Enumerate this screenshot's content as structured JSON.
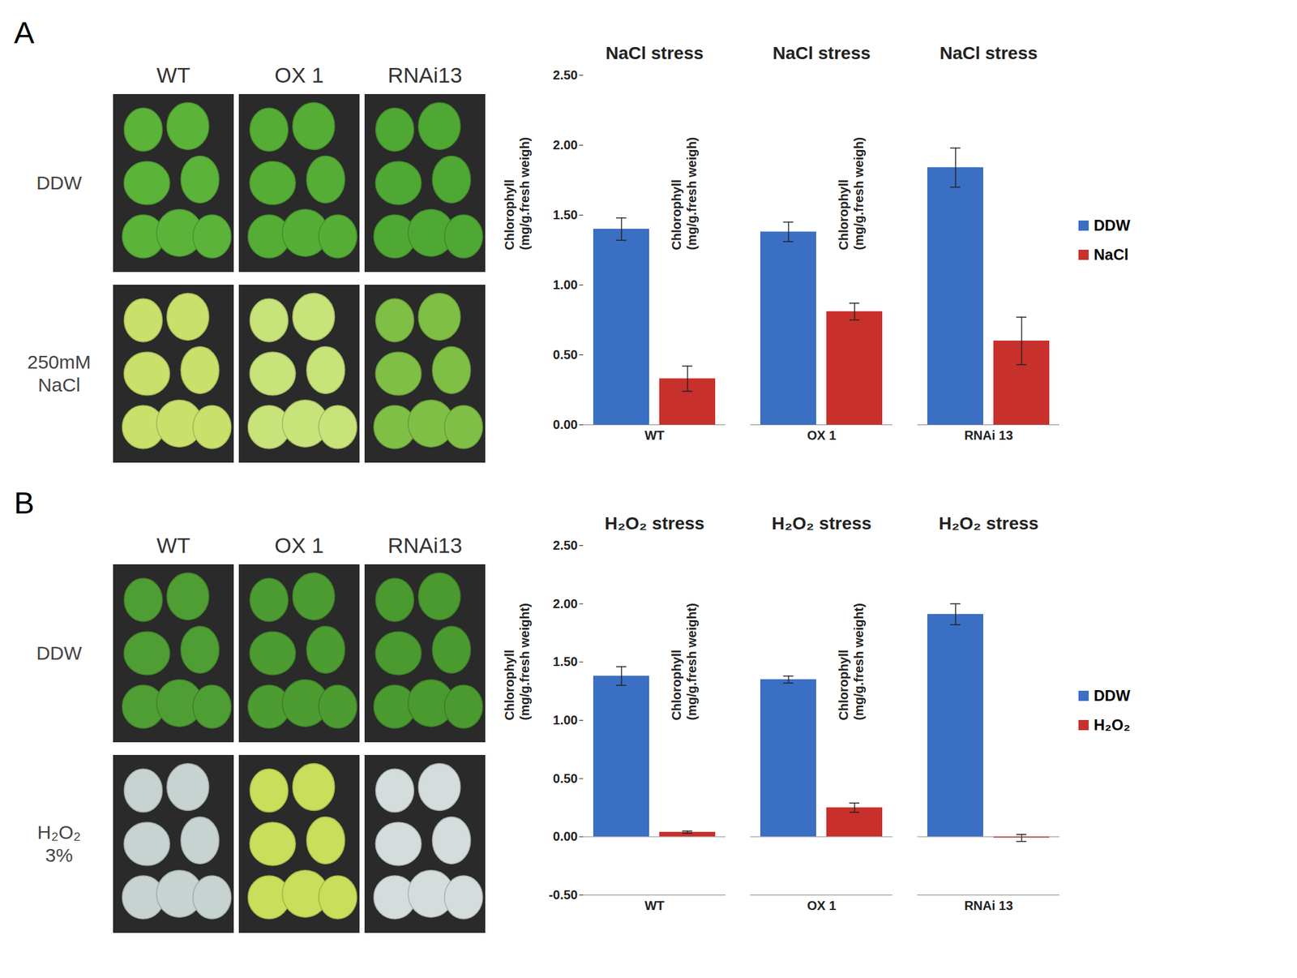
{
  "panels": [
    {
      "letter": "A",
      "columns": [
        "WT",
        "OX 1",
        "RNAi13"
      ],
      "rows": [
        "DDW",
        "250mM NaCl"
      ]
    },
    {
      "letter": "B",
      "columns": [
        "WT",
        "OX 1",
        "RNAi13"
      ],
      "rows": [
        "DDW",
        "H₂O₂ 3%"
      ]
    }
  ],
  "chart_data": [
    {
      "type": "bar",
      "title": "NaCl stress",
      "y_label": "Chlorophyll (mg/g.fresh weigh)",
      "categories": [
        "WT",
        "OX 1",
        "RNAi 13"
      ],
      "series": [
        {
          "name": "DDW",
          "color": "#3a6fc4",
          "values": [
            1.4,
            1.38,
            1.84
          ],
          "errors": [
            0.08,
            0.07,
            0.14
          ]
        },
        {
          "name": "NaCl",
          "color": "#c8302c",
          "values": [
            0.33,
            0.81,
            0.6
          ],
          "errors": [
            0.09,
            0.06,
            0.17
          ]
        }
      ],
      "ylim": [
        0,
        2.5
      ],
      "yticks": [
        {
          "value": 0,
          "label": "0.00"
        },
        {
          "value": 0.5,
          "label": "0.50"
        },
        {
          "value": 1,
          "label": "1.00"
        },
        {
          "value": 1.5,
          "label": "1.50"
        },
        {
          "value": 2,
          "label": "2.00"
        },
        {
          "value": 2.5,
          "label": "2.50"
        }
      ],
      "grid": false,
      "legend": "right"
    },
    {
      "type": "bar",
      "title": "H₂O₂ stress",
      "y_label": "Chlorophyll (mg/g.fresh weight)",
      "categories": [
        "WT",
        "OX 1",
        "RNAi 13"
      ],
      "series": [
        {
          "name": "DDW",
          "color": "#3a6fc4",
          "values": [
            1.38,
            1.35,
            1.91
          ],
          "errors": [
            0.08,
            0.03,
            0.09
          ]
        },
        {
          "name": "H₂O₂",
          "color": "#c8302c",
          "values": [
            0.04,
            0.25,
            -0.01
          ],
          "errors": [
            0.01,
            0.04,
            0.03
          ]
        }
      ],
      "ylim": [
        -0.5,
        2.5
      ],
      "yticks": [
        {
          "value": -0.5,
          "label": "-0.50"
        },
        {
          "value": 0,
          "label": "0.00"
        },
        {
          "value": 0.5,
          "label": "0.50"
        },
        {
          "value": 1,
          "label": "1.00"
        },
        {
          "value": 1.5,
          "label": "1.50"
        },
        {
          "value": 2,
          "label": "2.00"
        },
        {
          "value": 2.5,
          "label": "2.50"
        }
      ],
      "grid": false,
      "legend": "right"
    }
  ]
}
